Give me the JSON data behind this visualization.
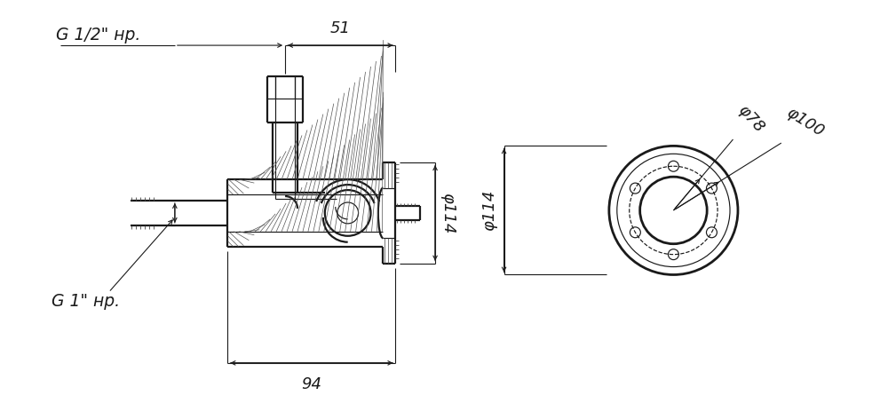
{
  "bg_color": "#ffffff",
  "lc": "#1a1a1a",
  "lw": 1.6,
  "lw_t": 0.85,
  "lw_d": 0.8,
  "fs": 13,
  "labels": {
    "g_half": "G 1/2\" нр.",
    "g_one": "G 1\" нр.",
    "d51": "51",
    "d94": "94",
    "d114_left": "φ114",
    "d114_right": "φ114",
    "d78": "φ78",
    "d100": "φ100"
  }
}
